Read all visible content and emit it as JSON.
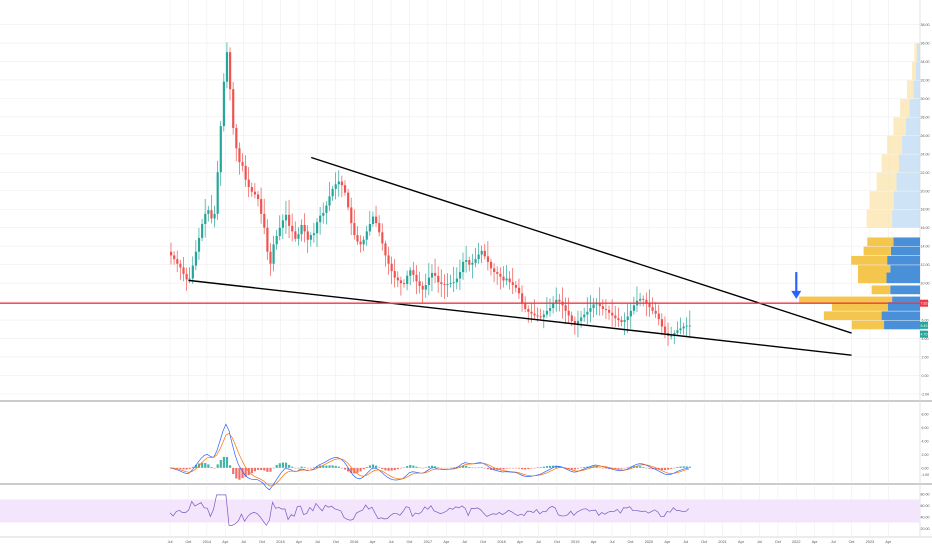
{
  "colors": {
    "up": "#26a69a",
    "down": "#ef5350",
    "trendline": "#000000",
    "support": "#f23645",
    "arrow": "#2962ff",
    "vp_up": "#4a90d9",
    "vp_down": "#f5c64d",
    "vp_up_light": "#c5dff5",
    "vp_down_light": "#fbe6b5",
    "macd_line": "#2962ff",
    "signal_line": "#ff6d00",
    "rsi_line": "#7e57c2",
    "rsi_band": "#f3e5fc",
    "grid": "#eeeeee"
  },
  "chart_data": {
    "type": "candlestick",
    "title": "",
    "time_axis": {
      "labels": [
        "Jul",
        "Oct",
        "2014",
        "Apr",
        "Jul",
        "Oct",
        "2015",
        "Apr",
        "Jul",
        "Oct",
        "2016",
        "Apr",
        "Jul",
        "Oct",
        "2017",
        "Apr",
        "Jul",
        "Oct",
        "2018",
        "Apr",
        "Jul",
        "Oct",
        "2019",
        "Apr",
        "Jul",
        "Oct",
        "2020",
        "Apr",
        "Jul",
        "Oct",
        "2021",
        "Apr",
        "Jul",
        "Oct",
        "2022",
        "Apr",
        "Jul",
        "Oct",
        "2023",
        "Apr"
      ],
      "start": "2013-07",
      "end": "2023-04"
    },
    "price_axis": {
      "ticks": [
        "38.00",
        "36.00",
        "34.00",
        "32.00",
        "30.00",
        "28.00",
        "26.00",
        "24.00",
        "22.00",
        "20.00",
        "18.00",
        "16.00",
        "14.00",
        "12.00",
        "10.00",
        "8.00",
        "6.00",
        "4.00",
        "2.00",
        "0.00",
        "-2.00"
      ],
      "range": [
        -2,
        40
      ]
    },
    "price_labels": [
      {
        "text": "7.83",
        "color": "#f23645",
        "value": 7.83
      },
      {
        "text": "5.43",
        "color": "#26a69a",
        "value": 5.43
      },
      {
        "text": "4.70",
        "color": "#26a69a",
        "value": 4.7
      }
    ],
    "closes": [
      13.0,
      12.6,
      12.1,
      11.7,
      11.0,
      10.4,
      10.5,
      11.9,
      13.4,
      14.9,
      16.4,
      17.5,
      17.9,
      17.0,
      17.5,
      22.0,
      27.0,
      31.8,
      35.0,
      31.0,
      26.8,
      24.6,
      23.1,
      22.7,
      21.2,
      20.4,
      19.9,
      19.6,
      19.1,
      17.5,
      16.0,
      13.4,
      12.1,
      14.2,
      15.1,
      16.0,
      16.8,
      17.4,
      16.2,
      15.6,
      14.8,
      15.3,
      16.3,
      15.6,
      14.7,
      15.2,
      15.4,
      16.6,
      17.3,
      17.6,
      18.4,
      19.4,
      20.2,
      20.7,
      21.0,
      20.6,
      19.8,
      18.2,
      16.5,
      15.2,
      14.5,
      14.2,
      14.7,
      15.6,
      16.4,
      17.2,
      16.5,
      15.5,
      14.3,
      13.0,
      12.1,
      11.3,
      10.6,
      10.3,
      10.0,
      9.9,
      10.8,
      11.4,
      10.9,
      10.2,
      9.7,
      9.3,
      9.8,
      10.6,
      11.1,
      10.8,
      10.1,
      9.9,
      9.8,
      9.9,
      10.0,
      10.1,
      10.5,
      11.2,
      12.3,
      12.5,
      12.0,
      12.2,
      12.6,
      13.1,
      13.5,
      12.9,
      12.3,
      11.6,
      11.2,
      11.0,
      10.7,
      10.3,
      10.5,
      10.1,
      9.8,
      9.5,
      8.9,
      7.8,
      7.2,
      6.9,
      6.7,
      6.5,
      6.4,
      6.3,
      6.6,
      7.0,
      7.3,
      7.8,
      8.2,
      8.0,
      7.6,
      7.0,
      6.5,
      5.9,
      5.6,
      5.9,
      6.3,
      6.6,
      6.9,
      7.3,
      7.7,
      7.9,
      7.5,
      7.2,
      7.1,
      6.8,
      6.5,
      6.2,
      6.0,
      5.8,
      6.0,
      6.4,
      7.0,
      7.6,
      8.1,
      8.3,
      8.2,
      7.9,
      7.4,
      7.0,
      6.7,
      6.1,
      5.3,
      4.6,
      4.3,
      4.3,
      4.6,
      4.9,
      5.1,
      5.3,
      5.4,
      5.4
    ],
    "highs_note": "",
    "trendlines": [
      {
        "name": "upper",
        "from": {
          "date": "2015-06",
          "price": 23.6
        },
        "to": {
          "date": "2022-10",
          "price": 4.6
        }
      },
      {
        "name": "lower",
        "from": {
          "date": "2013-10",
          "price": 10.3
        },
        "to": {
          "date": "2022-10",
          "price": 2.2
        }
      }
    ],
    "horizontal_line": {
      "price": 7.83
    },
    "volume_profile": [
      {
        "price": 34.0,
        "up": 1.0,
        "down": 0.8
      },
      {
        "price": 32.0,
        "up": 1.4,
        "down": 1.2
      },
      {
        "price": 30.0,
        "up": 2.2,
        "down": 2.0
      },
      {
        "price": 28.0,
        "up": 3.4,
        "down": 3.0
      },
      {
        "price": 26.0,
        "up": 4.6,
        "down": 4.0
      },
      {
        "price": 24.0,
        "up": 5.8,
        "down": 4.8
      },
      {
        "price": 22.0,
        "up": 6.8,
        "down": 5.6
      },
      {
        "price": 20.0,
        "up": 7.6,
        "down": 6.4
      },
      {
        "price": 18.0,
        "up": 8.4,
        "down": 7.8
      },
      {
        "price": 16.0,
        "up": 9.0,
        "down": 8.2
      },
      {
        "price": 14.0,
        "up": 8.6,
        "down": 8.4
      },
      {
        "price": 13.0,
        "up": 9.4,
        "down": 8.8
      },
      {
        "price": 12.0,
        "up": 10.6,
        "down": 11.6
      },
      {
        "price": 11.0,
        "up": 9.6,
        "down": 10.4
      },
      {
        "price": 10.0,
        "up": 10.8,
        "down": 9.2
      },
      {
        "price": 8.8,
        "up": 9.6,
        "down": 6.0
      },
      {
        "price": 7.8,
        "up": 9.0,
        "down": 30.0
      },
      {
        "price": 7.0,
        "up": 10.4,
        "down": 18.0
      },
      {
        "price": 6.0,
        "up": 12.4,
        "down": 18.6
      },
      {
        "price": 5.0,
        "up": 11.6,
        "down": 10.4
      }
    ],
    "volume_profile_bright_below": 14.0,
    "arrow_note": {
      "date": "2022-01",
      "from_price": 11.2,
      "to_price": 8.3
    },
    "macd_axis": {
      "ticks": [
        "8.00",
        "6.00",
        "4.00",
        "2.00",
        "0.00",
        "-1.00"
      ]
    },
    "rsi_axis": {
      "ticks": [
        "80.00",
        "60.00",
        "40.00",
        "20.00"
      ],
      "band": [
        30,
        70
      ]
    }
  }
}
